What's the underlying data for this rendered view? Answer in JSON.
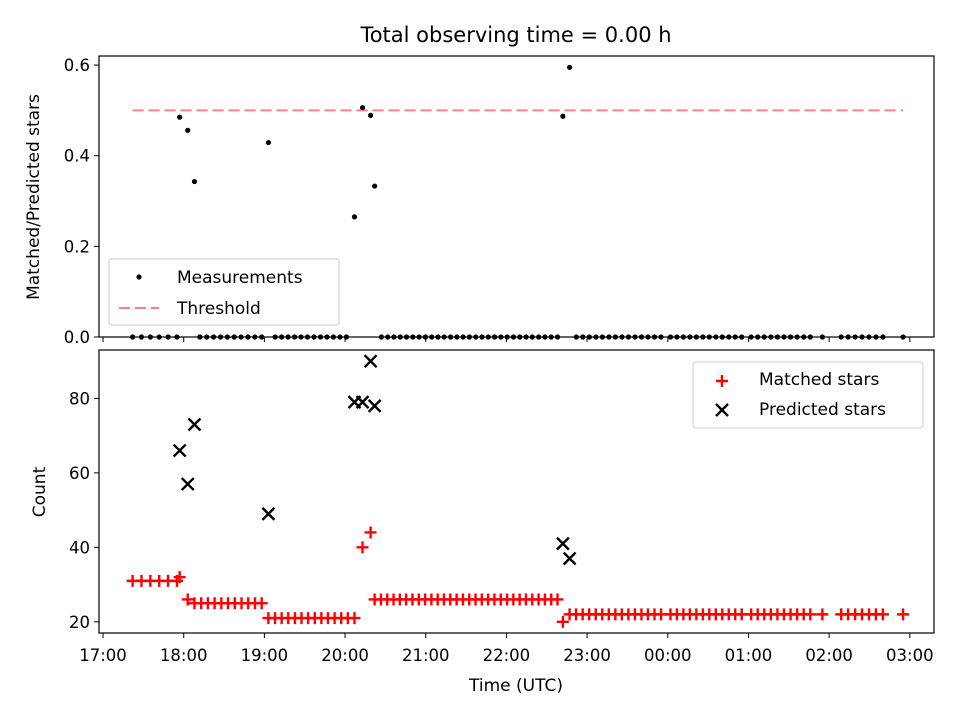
{
  "title": "Total observing time = 0.00 h",
  "chart_data": [
    {
      "type": "scatter",
      "ylabel": "Matched/Predicted stars",
      "ylim": [
        0,
        0.62
      ],
      "yticks": [
        0.0,
        0.2,
        0.4,
        0.6
      ],
      "ytick_labels": [
        "0.0",
        "0.2",
        "0.4",
        "0.6"
      ],
      "legend_position": "lower-left",
      "colors": {
        "measurements": "#000000",
        "threshold": "#ff7f7f"
      },
      "series": [
        {
          "name": "Measurements",
          "x_nonzero": [
            "17:57",
            "18:03",
            "18:08",
            "19:03",
            "20:07",
            "20:13",
            "20:19",
            "20:22",
            "22:42",
            "22:47"
          ],
          "y_nonzero": [
            0.485,
            0.456,
            0.343,
            0.429,
            0.265,
            0.506,
            0.489,
            0.333,
            0.487,
            0.595
          ],
          "x_zero_ranges": [
            [
              "17:22",
              "17:55",
              6
            ],
            [
              "18:12",
              "18:58",
              10
            ],
            [
              "19:08",
              "20:01",
              12
            ],
            [
              "20:27",
              "22:38",
              29
            ],
            [
              "22:52",
              "23:55",
              14
            ],
            [
              "00:02",
              "00:55",
              12
            ],
            [
              "01:02",
              "01:46",
              10
            ],
            [
              "01:55",
              "01:55",
              1
            ],
            [
              "02:09",
              "02:40",
              7
            ],
            [
              "02:55",
              "02:55",
              1
            ]
          ]
        },
        {
          "name": "Threshold",
          "x": [
            "17:22",
            "02:55"
          ],
          "y": [
            0.5,
            0.5
          ]
        }
      ]
    },
    {
      "type": "scatter",
      "xlabel": "Time (UTC)",
      "ylabel": "Count",
      "ylim": [
        17,
        93
      ],
      "yticks": [
        20,
        40,
        60,
        80
      ],
      "ytick_labels": [
        "20",
        "40",
        "60",
        "80"
      ],
      "xlim": [
        "16:57",
        "03:18"
      ],
      "xtick_labels": [
        "17:00",
        "18:00",
        "19:00",
        "20:00",
        "21:00",
        "22:00",
        "23:00",
        "00:00",
        "01:00",
        "02:00",
        "03:00"
      ],
      "legend_position": "upper-right",
      "colors": {
        "matched": "#ff0000",
        "predicted": "#000000"
      },
      "series": [
        {
          "name": "Matched stars",
          "segments": [
            {
              "from": "17:22",
              "to": "17:55",
              "count": 6,
              "y": 31
            },
            {
              "from": "17:57",
              "to": "17:57",
              "count": 1,
              "y": 32
            },
            {
              "from": "18:03",
              "to": "18:03",
              "count": 1,
              "y": 26
            },
            {
              "from": "18:08",
              "to": "18:58",
              "count": 11,
              "y": 25
            },
            {
              "from": "19:03",
              "to": "20:07",
              "count": 14,
              "y": 21
            },
            {
              "from": "20:13",
              "to": "20:13",
              "count": 1,
              "y": 40
            },
            {
              "from": "20:19",
              "to": "20:19",
              "count": 1,
              "y": 44
            },
            {
              "from": "20:22",
              "to": "22:38",
              "count": 30,
              "y": 26
            },
            {
              "from": "22:42",
              "to": "22:42",
              "count": 1,
              "y": 20
            },
            {
              "from": "22:47",
              "to": "23:55",
              "count": 15,
              "y": 22
            },
            {
              "from": "00:02",
              "to": "00:55",
              "count": 12,
              "y": 22
            },
            {
              "from": "01:02",
              "to": "01:46",
              "count": 10,
              "y": 22
            },
            {
              "from": "01:55",
              "to": "01:55",
              "count": 1,
              "y": 22
            },
            {
              "from": "02:09",
              "to": "02:40",
              "count": 7,
              "y": 22
            },
            {
              "from": "02:55",
              "to": "02:55",
              "count": 1,
              "y": 22
            }
          ]
        },
        {
          "name": "Predicted stars",
          "x": [
            "17:57",
            "18:03",
            "18:08",
            "19:03",
            "20:07",
            "20:13",
            "20:19",
            "20:22",
            "22:42",
            "22:47"
          ],
          "y": [
            66,
            57,
            73,
            49,
            79,
            79,
            90,
            78,
            41,
            37
          ]
        }
      ]
    }
  ]
}
